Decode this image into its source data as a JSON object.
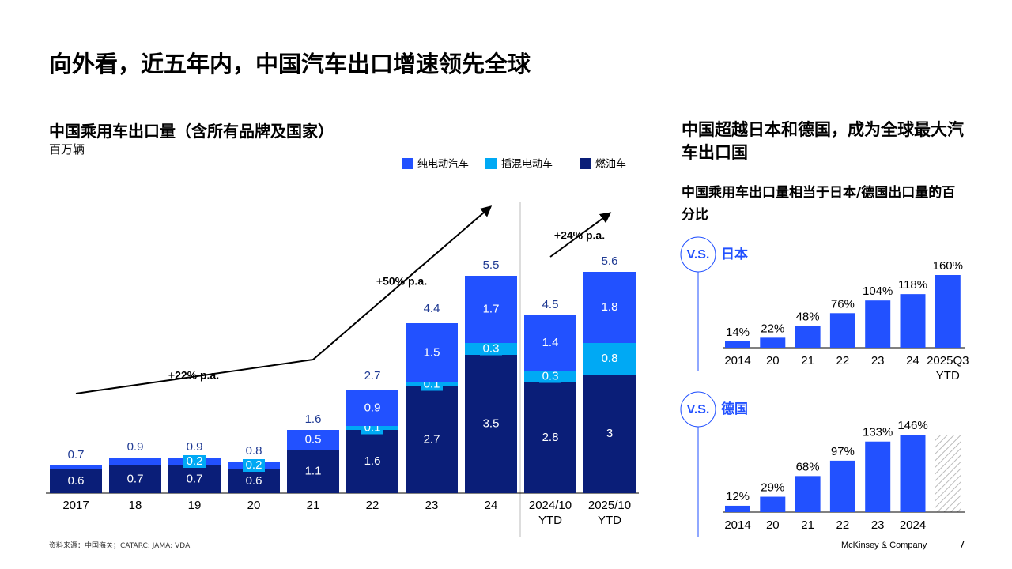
{
  "title": "向外看，近五年内，中国汽车出口增速领先全球",
  "chart_data": [
    {
      "type": "stacked-bar",
      "title": "中国乘用车出口量（含所有品牌及国家）",
      "subtitle": "百万辆",
      "categories": [
        "2017",
        "18",
        "19",
        "20",
        "21",
        "22",
        "23",
        "24",
        "2024/10 YTD",
        "2025/10 YTD"
      ],
      "series": [
        {
          "name": "纯电动汽车",
          "color": "#2251ff",
          "values": [
            0.1,
            0.2,
            0.2,
            0.2,
            0.5,
            0.9,
            1.5,
            1.7,
            1.4,
            1.8
          ],
          "value_labels": [
            null,
            null,
            "0.2",
            "0.2",
            "0.5",
            "0.9",
            "1.5",
            "1.7",
            "1.4",
            "1.8"
          ]
        },
        {
          "name": "插混电动车",
          "color": "#00a9f4",
          "values": [
            0,
            0,
            0,
            0,
            0,
            0.1,
            0.1,
            0.3,
            0.3,
            0.8
          ],
          "value_labels": [
            null,
            null,
            null,
            null,
            null,
            "0.1",
            "0.1",
            "0.3",
            "0.3",
            "0.8"
          ]
        },
        {
          "name": "燃油车",
          "color": "#0a1e78",
          "values": [
            0.6,
            0.7,
            0.7,
            0.6,
            1.1,
            1.6,
            2.7,
            3.5,
            2.8,
            3.0
          ]
        }
      ],
      "totals": [
        0.7,
        0.9,
        0.9,
        0.8,
        1.6,
        2.7,
        4.4,
        5.5,
        4.5,
        5.6
      ],
      "ylim": [
        0,
        6
      ],
      "annotations": [
        "+22% p.a.",
        "+50% p.a.",
        "+24% p.a."
      ]
    },
    {
      "type": "bar",
      "title": "日本",
      "categories": [
        "2014",
        "20",
        "21",
        "22",
        "23",
        "24",
        "2025Q3 YTD"
      ],
      "color": "#2251ff",
      "values": [
        14,
        22,
        48,
        76,
        104,
        118,
        160
      ],
      "value_labels": [
        "14%",
        "22%",
        "48%",
        "76%",
        "104%",
        "118%",
        "160%"
      ],
      "ylim": [
        0,
        160
      ]
    },
    {
      "type": "bar",
      "title": "德国",
      "categories": [
        "2014",
        "20",
        "21",
        "22",
        "23",
        "2024"
      ],
      "color": "#2251ff",
      "values": [
        12,
        29,
        68,
        97,
        133,
        146
      ],
      "value_labels": [
        "12%",
        "29%",
        "68%",
        "97%",
        "133%",
        "146%"
      ],
      "ylim": [
        0,
        146
      ]
    }
  ],
  "right_panel": {
    "heading": "中国超越日本和德国，成为全球最大汽车出口国",
    "subheading": "中国乘用车出口量相当于日本/德国出口量的百分比",
    "vs_label": "V.S."
  },
  "footer": {
    "source": "资料来源：中国海关；CATARC; JAMA; VDA",
    "brand": "McKinsey & Company",
    "page": "7"
  }
}
